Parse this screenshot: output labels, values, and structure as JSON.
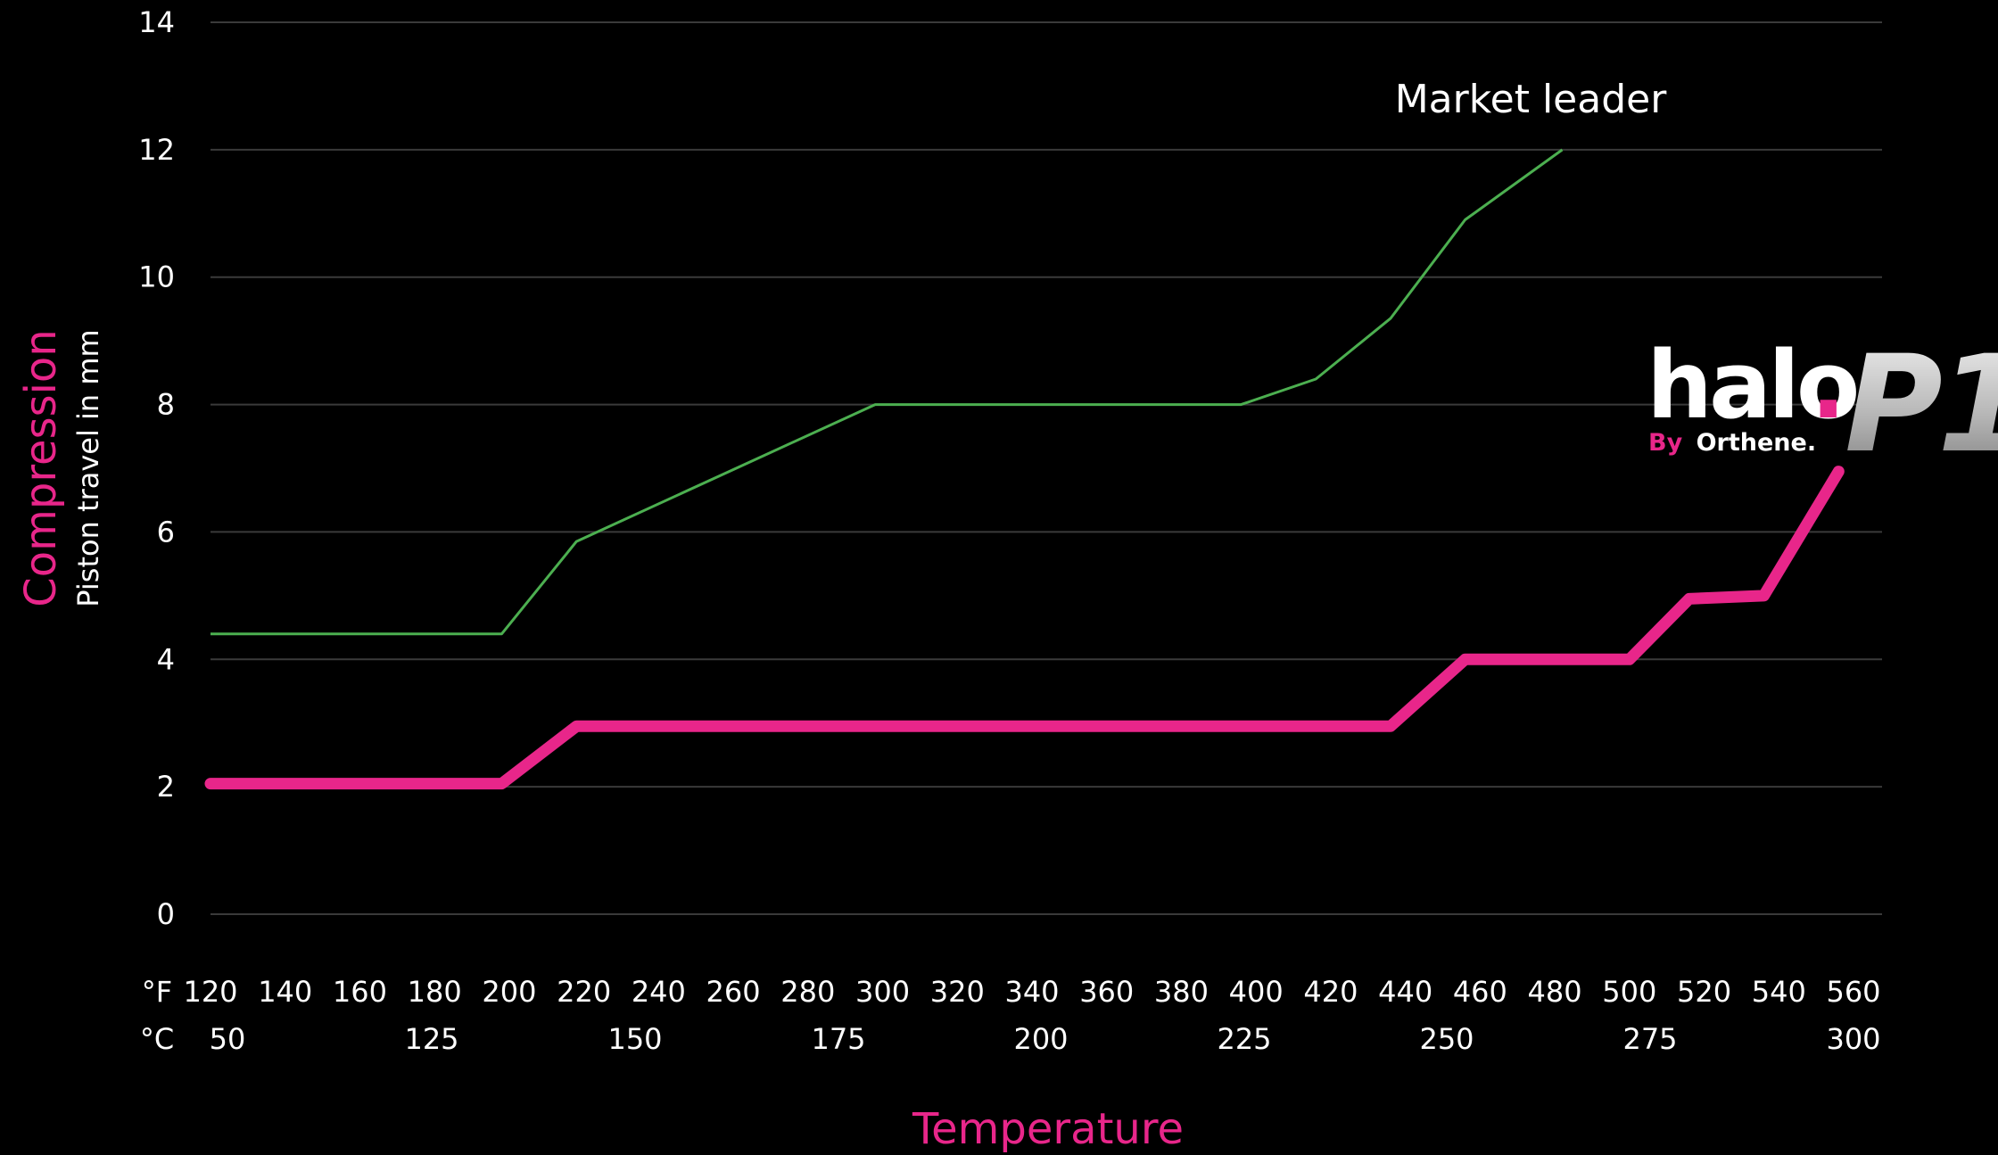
{
  "colors": {
    "background": "#000000",
    "accent_pink": "#e8268a",
    "market_leader_green": "#4caf50",
    "gridline": "#3a3a3a",
    "logo_silver": "#c9c9c9"
  },
  "logo": {
    "word": "halo",
    "dot": ".",
    "model": "P1",
    "byline_by": "By",
    "byline_brand": "Orthene."
  },
  "chart_data": {
    "type": "line",
    "xlabel": "Temperature",
    "ylabel": "Compression",
    "ylabel_sub": "Piston travel in mm",
    "ylim": [
      0,
      14
    ],
    "y_ticks": [
      0,
      2,
      4,
      6,
      8,
      10,
      12,
      14
    ],
    "xlim": [
      120,
      575
    ],
    "x_unit_f": "°F",
    "x_unit_c": "°C",
    "x_ticks_f": [
      120,
      140,
      160,
      180,
      200,
      220,
      240,
      260,
      280,
      300,
      320,
      340,
      360,
      380,
      400,
      420,
      440,
      460,
      480,
      500,
      520,
      540,
      560
    ],
    "x_ticks_c": [
      50,
      125,
      150,
      175,
      200,
      225,
      250,
      275,
      300
    ],
    "grid": true,
    "series": [
      {
        "name": "Market leader",
        "x": [
          120,
          198,
          218,
          298,
          396,
          416,
          436,
          456,
          482
        ],
        "y": [
          4.4,
          4.4,
          5.85,
          8,
          8,
          8.4,
          9.35,
          10.9,
          12
        ]
      },
      {
        "x": [
          120,
          198,
          218,
          300,
          436,
          456,
          500,
          516,
          536,
          556
        ],
        "y": [
          2.05,
          2.05,
          2.95,
          2.95,
          2.95,
          4.0,
          4.0,
          4.95,
          5.0,
          6.95
        ]
      }
    ]
  }
}
